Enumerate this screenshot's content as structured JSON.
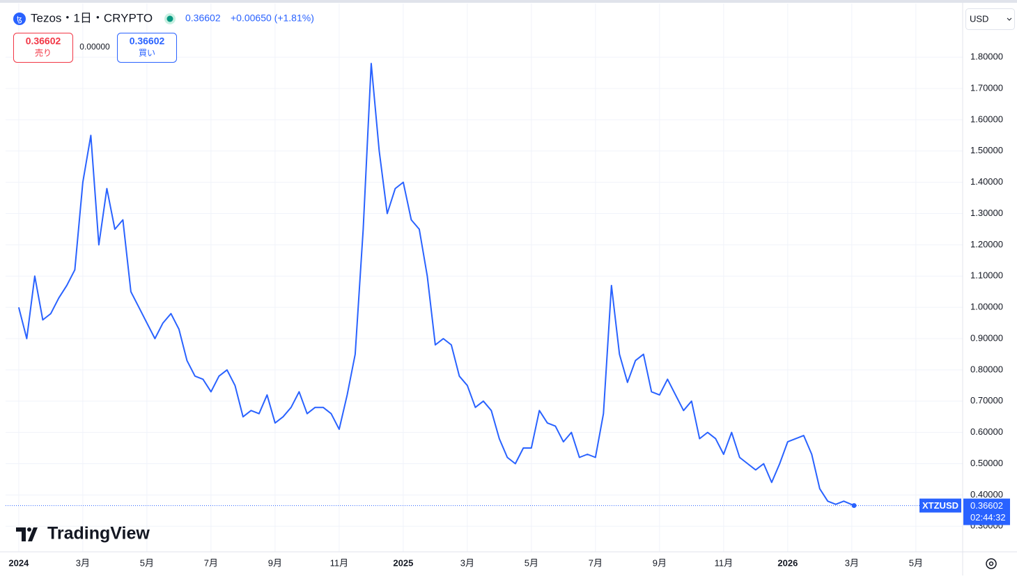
{
  "header": {
    "title": "Tezos・1日・CRYPTO",
    "change": "+0.00650 (+1.81%)",
    "sell_label": "売り",
    "buy_label": "買い",
    "spread": "0.00000",
    "currency": "USD",
    "countdown": "02:44:32",
    "logo": "TradingView"
  },
  "chart_data": {
    "type": "line",
    "x": [
      0,
      0.25,
      0.5,
      0.75,
      1,
      1.25,
      1.5,
      1.75,
      2,
      2.25,
      2.5,
      2.75,
      3,
      3.25,
      3.5,
      3.75,
      4,
      4.25,
      4.5,
      4.75,
      5,
      5.25,
      5.5,
      5.75,
      6,
      6.25,
      6.5,
      6.75,
      7,
      7.25,
      7.5,
      7.75,
      8,
      8.25,
      8.5,
      8.75,
      9,
      9.25,
      9.5,
      9.75,
      10,
      10.25,
      10.5,
      10.75,
      11,
      11.25,
      11.5,
      11.75,
      12,
      12.25,
      12.5,
      12.75,
      13,
      13.25,
      13.5,
      13.75,
      14,
      14.25,
      14.5,
      14.75,
      15,
      15.25,
      15.5,
      15.75,
      16,
      16.25,
      16.5,
      16.75,
      17,
      17.25,
      17.5,
      17.75,
      18,
      18.25,
      18.5,
      18.75,
      19,
      19.25,
      19.5,
      19.75,
      20,
      20.25,
      20.5,
      20.75,
      21,
      21.25,
      21.5,
      21.75,
      22,
      22.25,
      22.5,
      22.75,
      23,
      23.25,
      23.5,
      23.75,
      24,
      24.25,
      24.5,
      24.75,
      25,
      25.25,
      25.5,
      25.75,
      26.07
    ],
    "series": [
      {
        "name": "XTZUSD",
        "color": "#2962ff",
        "values": [
          1.0,
          0.9,
          1.1,
          0.96,
          0.98,
          1.03,
          1.07,
          1.12,
          1.4,
          1.55,
          1.2,
          1.38,
          1.25,
          1.28,
          1.05,
          1.0,
          0.95,
          0.9,
          0.95,
          0.98,
          0.93,
          0.83,
          0.78,
          0.77,
          0.73,
          0.78,
          0.8,
          0.75,
          0.65,
          0.67,
          0.66,
          0.72,
          0.63,
          0.65,
          0.68,
          0.73,
          0.66,
          0.68,
          0.68,
          0.66,
          0.61,
          0.72,
          0.85,
          1.25,
          1.78,
          1.5,
          1.3,
          1.38,
          1.4,
          1.28,
          1.25,
          1.1,
          0.88,
          0.9,
          0.88,
          0.78,
          0.75,
          0.68,
          0.7,
          0.67,
          0.58,
          0.52,
          0.5,
          0.55,
          0.55,
          0.67,
          0.63,
          0.62,
          0.57,
          0.6,
          0.52,
          0.53,
          0.52,
          0.66,
          1.07,
          0.85,
          0.76,
          0.83,
          0.85,
          0.73,
          0.72,
          0.77,
          0.72,
          0.67,
          0.7,
          0.58,
          0.6,
          0.58,
          0.53,
          0.6,
          0.52,
          0.5,
          0.48,
          0.5,
          0.44,
          0.5,
          0.57,
          0.58,
          0.59,
          0.53,
          0.42,
          0.38,
          0.37,
          0.38,
          0.36602
        ]
      }
    ],
    "xlim": [
      -0.41,
      29.46
    ],
    "xticks": [
      {
        "value": 0,
        "label": "2024"
      },
      {
        "value": 2,
        "label": "3月"
      },
      {
        "value": 4,
        "label": "5月"
      },
      {
        "value": 6,
        "label": "7月"
      },
      {
        "value": 8,
        "label": "9月"
      },
      {
        "value": 10,
        "label": "11月"
      },
      {
        "value": 12,
        "label": "2025"
      },
      {
        "value": 14,
        "label": "3月"
      },
      {
        "value": 16,
        "label": "5月"
      },
      {
        "value": 18,
        "label": "7月"
      },
      {
        "value": 20,
        "label": "9月"
      },
      {
        "value": 22,
        "label": "11月"
      },
      {
        "value": 24,
        "label": "2026"
      },
      {
        "value": 26,
        "label": "3月"
      },
      {
        "value": 28,
        "label": "5月"
      }
    ],
    "ylim": [
      0.218,
      1.972
    ],
    "yticks": [
      {
        "value": 0.3,
        "label": "0.30000"
      },
      {
        "value": 0.4,
        "label": "0.40000"
      },
      {
        "value": 0.5,
        "label": "0.50000"
      },
      {
        "value": 0.6,
        "label": "0.60000"
      },
      {
        "value": 0.7,
        "label": "0.70000"
      },
      {
        "value": 0.8,
        "label": "0.80000"
      },
      {
        "value": 0.9,
        "label": "0.90000"
      },
      {
        "value": 1.0,
        "label": "1.00000"
      },
      {
        "value": 1.1,
        "label": "1.10000"
      },
      {
        "value": 1.2,
        "label": "1.20000"
      },
      {
        "value": 1.3,
        "label": "1.30000"
      },
      {
        "value": 1.4,
        "label": "1.40000"
      },
      {
        "value": 1.5,
        "label": "1.50000"
      },
      {
        "value": 1.6,
        "label": "1.60000"
      },
      {
        "value": 1.7,
        "label": "1.70000"
      },
      {
        "value": 1.8,
        "label": "1.80000"
      }
    ],
    "grid": true
  }
}
